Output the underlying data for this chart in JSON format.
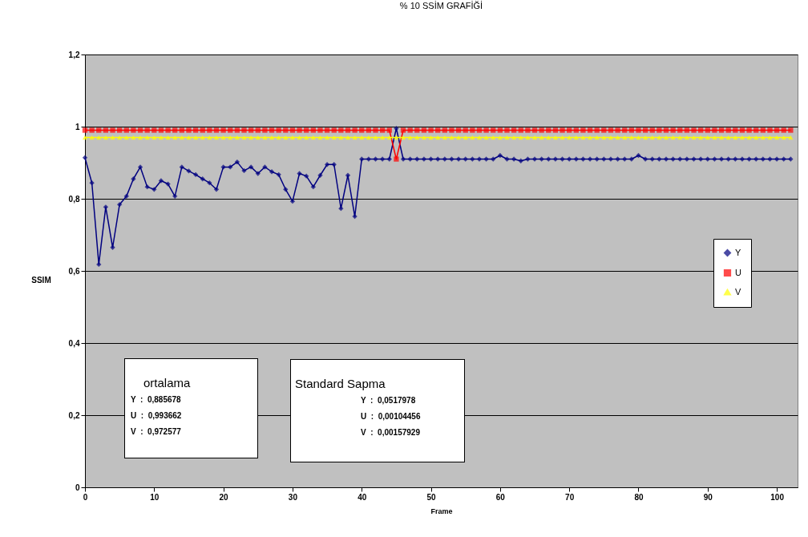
{
  "chart_data": {
    "type": "line",
    "title": "% 10 SSİM GRAFİĞİ",
    "xlabel": "Frame",
    "ylabel": "SSIM",
    "x": [
      0,
      1,
      2,
      3,
      4,
      5,
      6,
      7,
      8,
      9,
      10,
      11,
      12,
      13,
      14,
      15,
      16,
      17,
      18,
      19,
      20,
      21,
      22,
      23,
      24,
      25,
      26,
      27,
      28,
      29,
      30,
      31,
      32,
      33,
      34,
      35,
      36,
      37,
      38,
      39,
      40,
      41,
      42,
      43,
      44,
      45,
      46,
      47,
      48,
      49,
      50,
      51,
      52,
      53,
      54,
      55,
      56,
      57,
      58,
      59,
      60,
      61,
      62,
      63,
      64,
      65,
      66,
      67,
      68,
      69,
      70,
      71,
      72,
      73,
      74,
      75,
      76,
      77,
      78,
      79,
      80,
      81,
      82,
      83,
      84,
      85,
      86,
      87,
      88,
      89,
      90,
      91,
      92,
      93,
      94,
      95,
      96,
      97,
      98,
      99,
      100,
      101,
      102
    ],
    "series": [
      {
        "name": "Y",
        "color": "#000080",
        "marker": "diamond",
        "values": [
          0.914,
          0.844,
          0.618,
          0.777,
          0.665,
          0.784,
          0.807,
          0.855,
          0.888,
          0.833,
          0.826,
          0.85,
          0.841,
          0.807,
          0.888,
          0.877,
          0.867,
          0.855,
          0.844,
          0.826,
          0.888,
          0.888,
          0.902,
          0.878,
          0.888,
          0.87,
          0.888,
          0.875,
          0.867,
          0.826,
          0.793,
          0.87,
          0.863,
          0.833,
          0.865,
          0.895,
          0.895,
          0.773,
          0.865,
          0.751,
          0.91,
          0.91,
          0.91,
          0.91,
          0.91,
          0.995,
          0.91,
          0.91,
          0.91,
          0.91,
          0.91,
          0.91,
          0.91,
          0.91,
          0.91,
          0.91,
          0.91,
          0.91,
          0.91,
          0.91,
          0.92,
          0.91,
          0.91,
          0.905,
          0.91,
          0.91,
          0.91,
          0.91,
          0.91,
          0.91,
          0.91,
          0.91,
          0.91,
          0.91,
          0.91,
          0.91,
          0.91,
          0.91,
          0.91,
          0.91,
          0.92,
          0.91,
          0.91,
          0.91,
          0.91,
          0.91,
          0.91,
          0.91,
          0.91,
          0.91,
          0.91,
          0.91,
          0.91,
          0.91,
          0.91,
          0.91,
          0.91,
          0.91,
          0.91,
          0.91,
          0.91,
          0.91,
          0.91
        ]
      },
      {
        "name": "U",
        "color": "#ff0000",
        "marker": "square",
        "values": [
          0.99,
          0.99,
          0.99,
          0.99,
          0.99,
          0.99,
          0.99,
          0.99,
          0.99,
          0.99,
          0.99,
          0.99,
          0.99,
          0.99,
          0.99,
          0.99,
          0.99,
          0.99,
          0.99,
          0.99,
          0.99,
          0.99,
          0.99,
          0.99,
          0.99,
          0.99,
          0.99,
          0.99,
          0.99,
          0.99,
          0.99,
          0.99,
          0.99,
          0.99,
          0.99,
          0.99,
          0.99,
          0.99,
          0.99,
          0.99,
          0.99,
          0.99,
          0.99,
          0.99,
          0.99,
          0.91,
          0.99,
          0.99,
          0.99,
          0.99,
          0.99,
          0.99,
          0.99,
          0.99,
          0.99,
          0.99,
          0.99,
          0.99,
          0.99,
          0.99,
          0.99,
          0.99,
          0.99,
          0.99,
          0.99,
          0.99,
          0.99,
          0.99,
          0.99,
          0.99,
          0.99,
          0.99,
          0.99,
          0.99,
          0.99,
          0.99,
          0.99,
          0.99,
          0.99,
          0.99,
          0.99,
          0.99,
          0.99,
          0.99,
          0.99,
          0.99,
          0.99,
          0.99,
          0.99,
          0.99,
          0.99,
          0.99,
          0.99,
          0.99,
          0.99,
          0.99,
          0.99,
          0.99,
          0.99,
          0.99,
          0.99,
          0.99,
          0.99
        ]
      },
      {
        "name": "V",
        "color": "#ffff00",
        "marker": "triangle",
        "values": [
          0.97,
          0.97,
          0.97,
          0.97,
          0.97,
          0.97,
          0.97,
          0.97,
          0.97,
          0.97,
          0.97,
          0.97,
          0.97,
          0.97,
          0.97,
          0.97,
          0.97,
          0.97,
          0.97,
          0.97,
          0.97,
          0.97,
          0.97,
          0.97,
          0.97,
          0.97,
          0.97,
          0.97,
          0.97,
          0.97,
          0.97,
          0.97,
          0.97,
          0.97,
          0.97,
          0.97,
          0.97,
          0.97,
          0.97,
          0.97,
          0.97,
          0.97,
          0.97,
          0.97,
          0.97,
          0.97,
          0.97,
          0.97,
          0.97,
          0.97,
          0.97,
          0.97,
          0.97,
          0.97,
          0.97,
          0.97,
          0.97,
          0.97,
          0.97,
          0.97,
          0.97,
          0.97,
          0.97,
          0.97,
          0.97,
          0.97,
          0.97,
          0.97,
          0.97,
          0.97,
          0.97,
          0.97,
          0.97,
          0.97,
          0.97,
          0.97,
          0.97,
          0.97,
          0.97,
          0.97,
          0.97,
          0.97,
          0.97,
          0.97,
          0.97,
          0.97,
          0.97,
          0.97,
          0.97,
          0.97,
          0.97,
          0.97,
          0.97,
          0.97,
          0.97,
          0.97,
          0.97,
          0.97,
          0.97,
          0.97,
          0.97,
          0.97,
          0.97
        ]
      }
    ],
    "xlim": [
      0,
      103
    ],
    "xticks": [
      0,
      10,
      20,
      30,
      40,
      50,
      60,
      70,
      80,
      90,
      100
    ],
    "ylim": [
      0,
      1.2
    ],
    "yticks": [
      0,
      {
        "value": 0.2,
        "label": "0,2"
      },
      {
        "value": 0.4,
        "label": "0,4"
      },
      {
        "value": 0.6,
        "label": "0,6"
      },
      {
        "value": 0.8,
        "label": "0,8"
      },
      1,
      {
        "value": 1.2,
        "label": "1,2"
      }
    ],
    "grid": "y",
    "legend": "right",
    "annotations": [
      "ortalama",
      "Y  :  0,885678",
      "U  :  0,993662",
      "V  :  0,972577",
      "Standard Sapma",
      "Y  :  0,0517978",
      "U  :  0,00104456",
      "V  :  0,00157929"
    ]
  }
}
